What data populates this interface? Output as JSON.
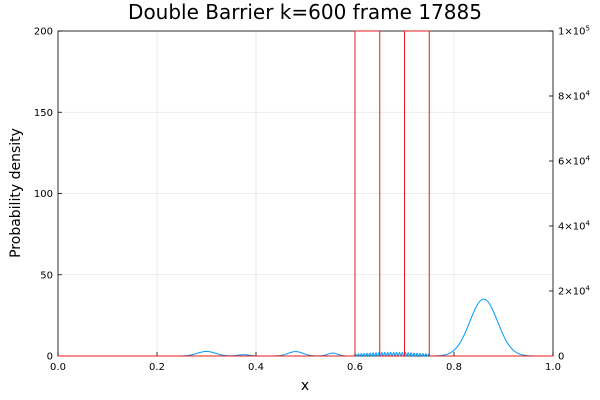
{
  "chart_data": {
    "type": "line",
    "title": "Double Barrier k=600 frame 17885",
    "xlabel": "x",
    "ylabel": "Probability density",
    "xlim": [
      0,
      1
    ],
    "ylim": [
      0,
      200
    ],
    "y2lim": [
      0,
      100000
    ],
    "grid": true,
    "legend": "none",
    "x_ticks": [
      0,
      0.2,
      0.4,
      0.6,
      0.8,
      1.0
    ],
    "x_tick_labels": [
      "0.0",
      "0.2",
      "0.4",
      "0.6",
      "0.8",
      "1.0"
    ],
    "y_ticks": [
      0,
      50,
      100,
      150,
      200
    ],
    "y_tick_labels": [
      "0",
      "50",
      "100",
      "150",
      "200"
    ],
    "y2_ticks": [
      0,
      20000,
      40000,
      60000,
      80000,
      100000
    ],
    "y2_tick_labels": [
      {
        "mantissa": "0",
        "exp": ""
      },
      {
        "mantissa": "2×10",
        "exp": "4"
      },
      {
        "mantissa": "4×10",
        "exp": "4"
      },
      {
        "mantissa": "6×10",
        "exp": "4"
      },
      {
        "mantissa": "8×10",
        "exp": "4"
      },
      {
        "mantissa": "1×10",
        "exp": "5"
      }
    ],
    "series": [
      {
        "axis": "left",
        "color": "#009af9",
        "bumps": [
          {
            "center": 0.3,
            "height": 2.8,
            "width": 0.018
          },
          {
            "center": 0.375,
            "height": 0.8,
            "width": 0.012
          },
          {
            "center": 0.48,
            "height": 2.7,
            "width": 0.015
          },
          {
            "center": 0.555,
            "height": 1.8,
            "width": 0.01
          },
          {
            "center": 0.86,
            "height": 35,
            "width": 0.028
          }
        ],
        "oscillation": {
          "from": 0.598,
          "to": 0.752,
          "amplitude": 2.2,
          "cycles": 26
        }
      },
      {
        "axis": "right",
        "color": "#e8191e",
        "x": [
          0,
          0.6,
          0.6,
          0.65,
          0.65,
          0.7,
          0.7,
          0.75,
          0.75,
          1.0
        ],
        "values": [
          0,
          0,
          100000,
          100000,
          0,
          0,
          100000,
          100000,
          0,
          0
        ]
      }
    ]
  }
}
